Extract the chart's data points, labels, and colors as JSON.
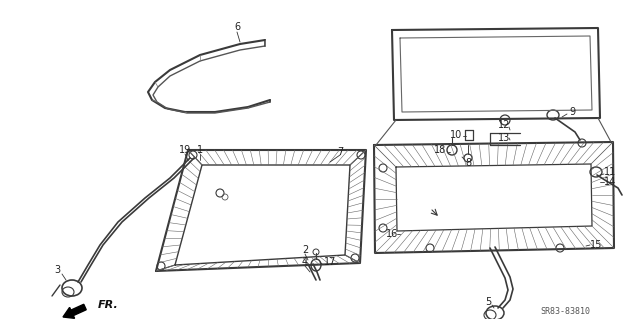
{
  "bg_color": "#ffffff",
  "line_color": "#3a3a3a",
  "diagram_code": "SR83-83810",
  "fr_label": "FR."
}
